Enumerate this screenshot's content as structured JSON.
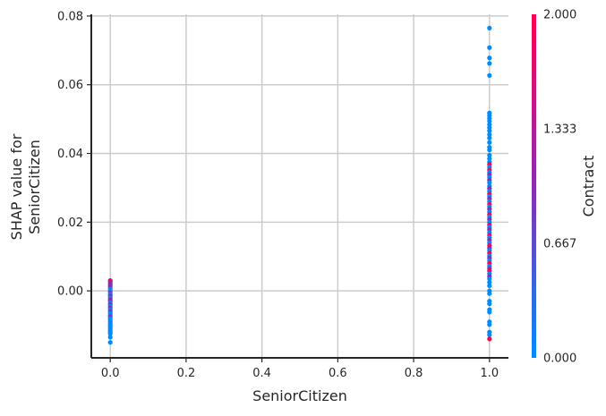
{
  "chart_data": {
    "type": "scatter",
    "title": "",
    "xlabel": "SeniorCitizen",
    "ylabel_lines": [
      "SHAP value for",
      "SeniorCitizen"
    ],
    "xlim": [
      -0.05,
      1.05
    ],
    "ylim": [
      -0.0195,
      0.0805
    ],
    "x_ticks": [
      0.0,
      0.2,
      0.4,
      0.6,
      0.8,
      1.0
    ],
    "x_tick_labels": [
      "0.0",
      "0.2",
      "0.4",
      "0.6",
      "0.8",
      "1.0"
    ],
    "y_ticks": [
      0.0,
      0.02,
      0.04,
      0.06,
      0.08
    ],
    "y_tick_labels": [
      "0.00",
      "0.02",
      "0.04",
      "0.06",
      "0.08"
    ],
    "grid": true,
    "color_feature": "Contract",
    "colorbar": {
      "label": "Contract",
      "range": [
        0.0,
        2.0
      ],
      "ticks": [
        0.0,
        0.667,
        1.333,
        2.0
      ],
      "tick_labels": [
        "0.000",
        "0.667",
        "1.333",
        "2.000"
      ],
      "colors": [
        "#008bfb",
        "#8c2bb2",
        "#ff0052"
      ]
    },
    "points": [
      {
        "x": 0,
        "y": 0.003,
        "c": 2
      },
      {
        "x": 0,
        "y": 0.0025,
        "c": 1
      },
      {
        "x": 0,
        "y": 0.002,
        "c": 1
      },
      {
        "x": 0,
        "y": 0.0015,
        "c": 1
      },
      {
        "x": 0,
        "y": 0.001,
        "c": 1
      },
      {
        "x": 0,
        "y": 0.0005,
        "c": 0
      },
      {
        "x": 0,
        "y": 0.0,
        "c": 0
      },
      {
        "x": 0,
        "y": -0.0005,
        "c": 1
      },
      {
        "x": 0,
        "y": -0.001,
        "c": 0
      },
      {
        "x": 0,
        "y": -0.0015,
        "c": 1
      },
      {
        "x": 0,
        "y": -0.002,
        "c": 0
      },
      {
        "x": 0,
        "y": -0.0025,
        "c": 1
      },
      {
        "x": 0,
        "y": -0.003,
        "c": 1
      },
      {
        "x": 0,
        "y": -0.0035,
        "c": 0
      },
      {
        "x": 0,
        "y": -0.004,
        "c": 1
      },
      {
        "x": 0,
        "y": -0.0045,
        "c": 0
      },
      {
        "x": 0,
        "y": -0.005,
        "c": 1
      },
      {
        "x": 0,
        "y": -0.0055,
        "c": 0
      },
      {
        "x": 0,
        "y": -0.006,
        "c": 1
      },
      {
        "x": 0,
        "y": -0.0065,
        "c": 0
      },
      {
        "x": 0,
        "y": -0.007,
        "c": 0
      },
      {
        "x": 0,
        "y": -0.0075,
        "c": 1
      },
      {
        "x": 0,
        "y": -0.008,
        "c": 0
      },
      {
        "x": 0,
        "y": -0.0085,
        "c": 0
      },
      {
        "x": 0,
        "y": -0.009,
        "c": 0
      },
      {
        "x": 0,
        "y": -0.0095,
        "c": 0
      },
      {
        "x": 0,
        "y": -0.01,
        "c": 0
      },
      {
        "x": 0,
        "y": -0.0105,
        "c": 0
      },
      {
        "x": 0,
        "y": -0.011,
        "c": 0
      },
      {
        "x": 0,
        "y": -0.0115,
        "c": 0
      },
      {
        "x": 0,
        "y": -0.012,
        "c": 0
      },
      {
        "x": 0,
        "y": -0.0125,
        "c": 0
      },
      {
        "x": 0,
        "y": -0.0135,
        "c": 0
      },
      {
        "x": 0,
        "y": -0.015,
        "c": 0
      },
      {
        "x": 1,
        "y": 0.0765,
        "c": 0
      },
      {
        "x": 1,
        "y": 0.0708,
        "c": 0
      },
      {
        "x": 1,
        "y": 0.0678,
        "c": 0
      },
      {
        "x": 1,
        "y": 0.0662,
        "c": 0
      },
      {
        "x": 1,
        "y": 0.0627,
        "c": 0
      },
      {
        "x": 1,
        "y": 0.0518,
        "c": 0
      },
      {
        "x": 1,
        "y": 0.051,
        "c": 0
      },
      {
        "x": 1,
        "y": 0.0502,
        "c": 0
      },
      {
        "x": 1,
        "y": 0.0494,
        "c": 0
      },
      {
        "x": 1,
        "y": 0.0484,
        "c": 0
      },
      {
        "x": 1,
        "y": 0.0475,
        "c": 0
      },
      {
        "x": 1,
        "y": 0.0466,
        "c": 0
      },
      {
        "x": 1,
        "y": 0.0455,
        "c": 0
      },
      {
        "x": 1,
        "y": 0.0445,
        "c": 0
      },
      {
        "x": 1,
        "y": 0.0432,
        "c": 0
      },
      {
        "x": 1,
        "y": 0.0418,
        "c": 0
      },
      {
        "x": 1,
        "y": 0.041,
        "c": 0
      },
      {
        "x": 1,
        "y": 0.0395,
        "c": 0
      },
      {
        "x": 1,
        "y": 0.0385,
        "c": 0
      },
      {
        "x": 1,
        "y": 0.0375,
        "c": 0
      },
      {
        "x": 1,
        "y": 0.0368,
        "c": 2
      },
      {
        "x": 1,
        "y": 0.036,
        "c": 0
      },
      {
        "x": 1,
        "y": 0.0352,
        "c": 2
      },
      {
        "x": 1,
        "y": 0.0345,
        "c": 0
      },
      {
        "x": 1,
        "y": 0.0338,
        "c": 1
      },
      {
        "x": 1,
        "y": 0.033,
        "c": 0
      },
      {
        "x": 1,
        "y": 0.0322,
        "c": 1
      },
      {
        "x": 1,
        "y": 0.0315,
        "c": 0
      },
      {
        "x": 1,
        "y": 0.0305,
        "c": 0
      },
      {
        "x": 1,
        "y": 0.0298,
        "c": 1
      },
      {
        "x": 1,
        "y": 0.029,
        "c": 0
      },
      {
        "x": 1,
        "y": 0.0282,
        "c": 2
      },
      {
        "x": 1,
        "y": 0.0275,
        "c": 0
      },
      {
        "x": 1,
        "y": 0.0268,
        "c": 1
      },
      {
        "x": 1,
        "y": 0.026,
        "c": 0
      },
      {
        "x": 1,
        "y": 0.0252,
        "c": 2
      },
      {
        "x": 1,
        "y": 0.0245,
        "c": 0
      },
      {
        "x": 1,
        "y": 0.0238,
        "c": 1
      },
      {
        "x": 1,
        "y": 0.023,
        "c": 0
      },
      {
        "x": 1,
        "y": 0.0222,
        "c": 2
      },
      {
        "x": 1,
        "y": 0.0215,
        "c": 0
      },
      {
        "x": 1,
        "y": 0.0208,
        "c": 1
      },
      {
        "x": 1,
        "y": 0.02,
        "c": 0
      },
      {
        "x": 1,
        "y": 0.0192,
        "c": 2
      },
      {
        "x": 1,
        "y": 0.0185,
        "c": 0
      },
      {
        "x": 1,
        "y": 0.0178,
        "c": 1
      },
      {
        "x": 1,
        "y": 0.017,
        "c": 0
      },
      {
        "x": 1,
        "y": 0.0162,
        "c": 2
      },
      {
        "x": 1,
        "y": 0.0155,
        "c": 0
      },
      {
        "x": 1,
        "y": 0.0148,
        "c": 1
      },
      {
        "x": 1,
        "y": 0.014,
        "c": 0
      },
      {
        "x": 1,
        "y": 0.0132,
        "c": 2
      },
      {
        "x": 1,
        "y": 0.0125,
        "c": 1
      },
      {
        "x": 1,
        "y": 0.0118,
        "c": 0
      },
      {
        "x": 1,
        "y": 0.011,
        "c": 2
      },
      {
        "x": 1,
        "y": 0.0102,
        "c": 0
      },
      {
        "x": 1,
        "y": 0.0095,
        "c": 1
      },
      {
        "x": 1,
        "y": 0.0088,
        "c": 0
      },
      {
        "x": 1,
        "y": 0.008,
        "c": 2
      },
      {
        "x": 1,
        "y": 0.0072,
        "c": 0
      },
      {
        "x": 1,
        "y": 0.0065,
        "c": 1
      },
      {
        "x": 1,
        "y": 0.0058,
        "c": 2
      },
      {
        "x": 1,
        "y": 0.005,
        "c": 0
      },
      {
        "x": 1,
        "y": 0.0042,
        "c": 1
      },
      {
        "x": 1,
        "y": 0.0035,
        "c": 0
      },
      {
        "x": 1,
        "y": 0.0025,
        "c": 0
      },
      {
        "x": 1,
        "y": 0.0015,
        "c": 0
      },
      {
        "x": 1,
        "y": 0.0,
        "c": 0
      },
      {
        "x": 1,
        "y": -0.0008,
        "c": 0
      },
      {
        "x": 1,
        "y": -0.003,
        "c": 0
      },
      {
        "x": 1,
        "y": -0.0038,
        "c": 0
      },
      {
        "x": 1,
        "y": -0.0055,
        "c": 0
      },
      {
        "x": 1,
        "y": -0.0062,
        "c": 0
      },
      {
        "x": 1,
        "y": -0.009,
        "c": 0
      },
      {
        "x": 1,
        "y": -0.0098,
        "c": 0
      },
      {
        "x": 1,
        "y": -0.012,
        "c": 0
      },
      {
        "x": 1,
        "y": -0.0128,
        "c": 0
      },
      {
        "x": 1,
        "y": -0.014,
        "c": 2
      }
    ]
  }
}
